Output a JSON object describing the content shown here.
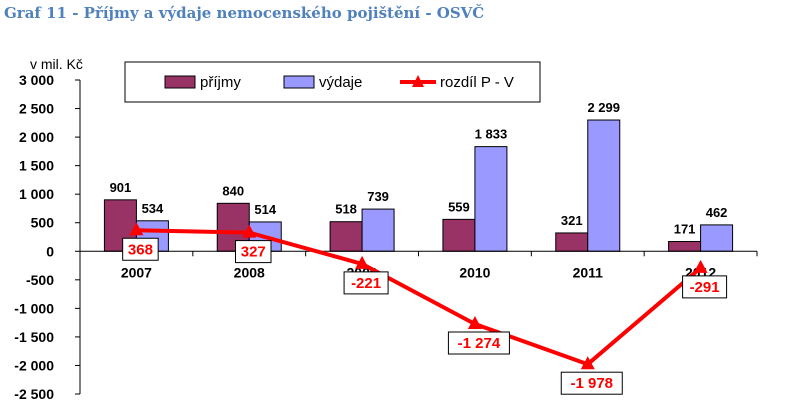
{
  "page": {
    "title": "Graf 11 - Příjmy a výdaje nemocenského pojištění - OSVČ"
  },
  "chart_data": {
    "type": "bar",
    "ylabel": "v mil. Kč",
    "ylim": [
      -2500,
      3000
    ],
    "ytick_step": 500,
    "ytick_labels": [
      "3 000",
      "2 500",
      "2 000",
      "1 500",
      "1 000",
      "500",
      "0",
      "-500",
      "-1 000",
      "-1 500",
      "-2 000",
      "-2 500"
    ],
    "categories": [
      "2007",
      "2008",
      "2009",
      "2010",
      "2011",
      "2012"
    ],
    "series": [
      {
        "name": "příjmy",
        "kind": "bar",
        "color": "#993366",
        "values": [
          901,
          840,
          518,
          559,
          321,
          171
        ],
        "labels": [
          "901",
          "840",
          "518",
          "559",
          "321",
          "171"
        ]
      },
      {
        "name": "výdaje",
        "kind": "bar",
        "color": "#9999ff",
        "values": [
          534,
          514,
          739,
          1833,
          2299,
          462
        ],
        "labels": [
          "534",
          "514",
          "739",
          "1 833",
          "2 299",
          "462"
        ]
      },
      {
        "name": "rozdíl P - V",
        "kind": "line",
        "color": "#ff0000",
        "values": [
          368,
          327,
          -221,
          -1274,
          -1978,
          -291
        ],
        "labels": [
          "368",
          "327",
          "-221",
          "-1 274",
          "-1 978",
          "-291"
        ]
      }
    ],
    "legend_position": "top",
    "grid": false
  }
}
